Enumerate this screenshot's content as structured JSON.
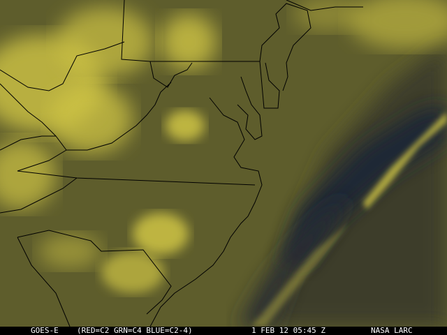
{
  "caption": {
    "satellite": "GOES-E",
    "channels": "(RED=C2 GRN=C4 BLUE=C2-4)",
    "datetime": "1 FEB 12 05:45 Z",
    "credit": "NASA LARC"
  },
  "colors": {
    "land": "#5e5d2c",
    "cloud": "#cfc444",
    "ocean": "#3d3e2a",
    "deep_clear": "#1f2534",
    "boundaries": "#000000"
  }
}
